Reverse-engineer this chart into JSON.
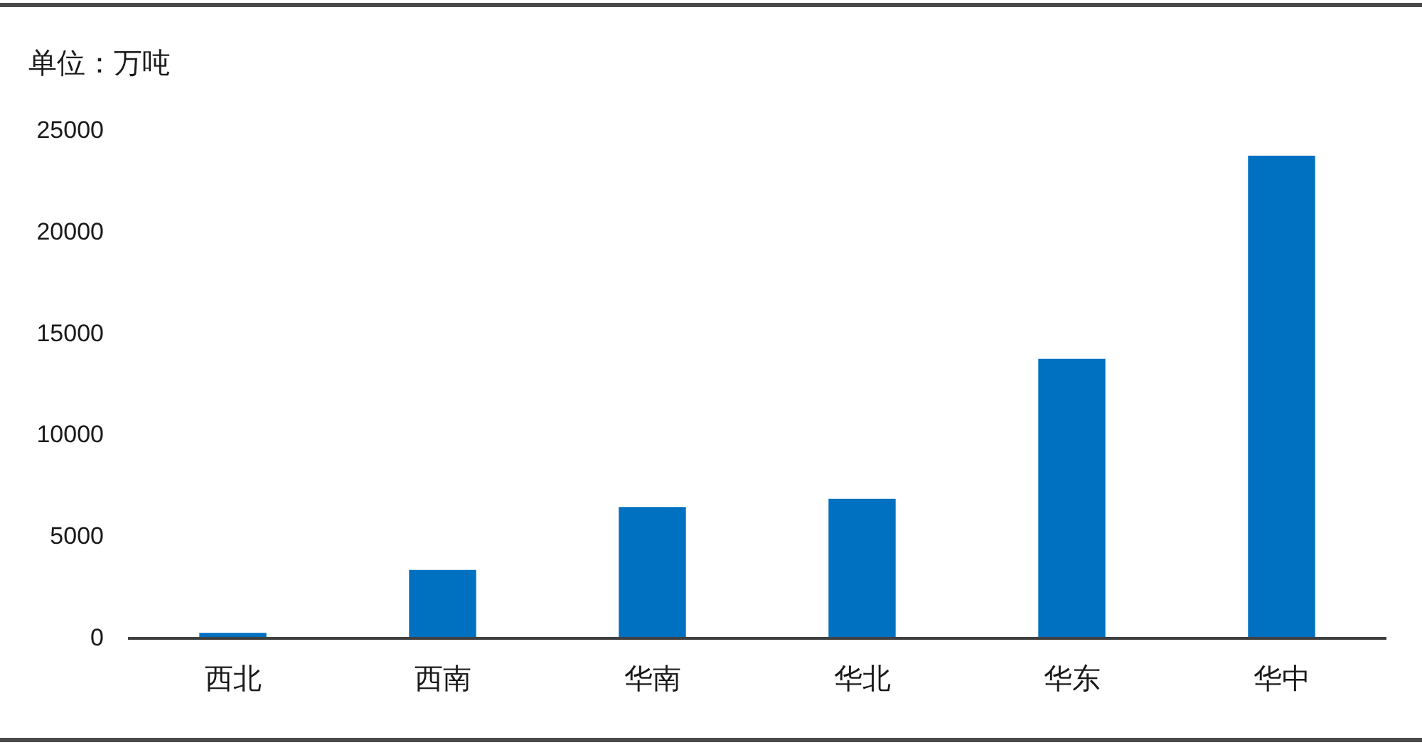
{
  "chart_data": {
    "type": "bar",
    "ylabel": "单位：万吨",
    "categories": [
      "西北",
      "西南",
      "华南",
      "华北",
      "华东",
      "华中"
    ],
    "values": [
      200,
      3300,
      6400,
      6800,
      13700,
      23700
    ],
    "color": "#0070c0",
    "ylim": [
      0,
      25000
    ],
    "yticks": [
      0,
      5000,
      10000,
      15000,
      20000,
      25000
    ]
  }
}
